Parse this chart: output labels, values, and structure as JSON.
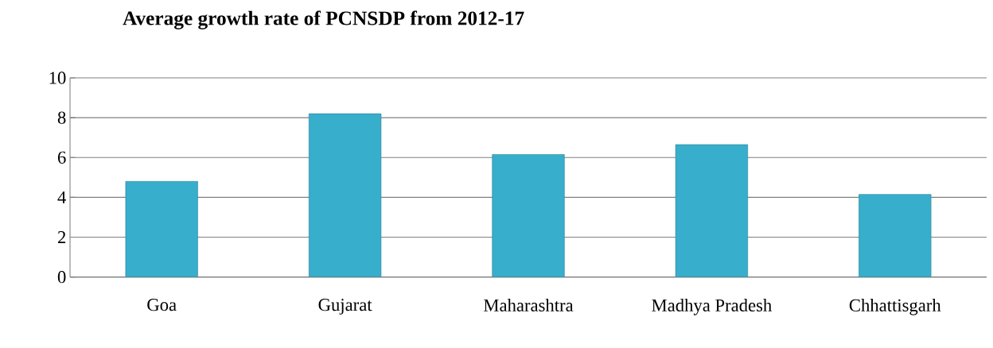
{
  "chart_data": {
    "type": "bar",
    "title": "Average growth rate of PCNSDP from 2012-17",
    "categories": [
      "Goa",
      "Gujarat",
      "Maharashtra",
      "Madhya Pradesh",
      "Chhattisgarh"
    ],
    "values": [
      4.8,
      8.2,
      6.15,
      6.65,
      4.15
    ],
    "color": "#37aecb",
    "ylim": [
      0,
      10
    ],
    "yticks": [
      0,
      2,
      4,
      6,
      8,
      10
    ],
    "grid": "y"
  }
}
